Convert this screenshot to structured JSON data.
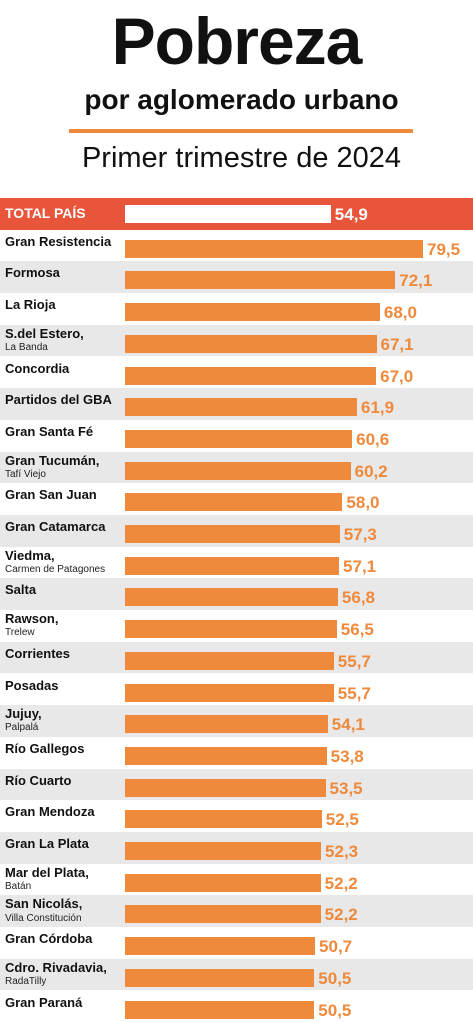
{
  "header": {
    "title": "Pobreza",
    "subtitle": "por aglomerado urbano",
    "period": "Primer trimestre de 2024"
  },
  "colors": {
    "bar": "#ef8a3c",
    "total_row": "#e8553a",
    "alt_row": "#e8e8e8"
  },
  "chart_data": {
    "type": "bar",
    "orientation": "horizontal",
    "title": "Pobreza",
    "subtitle": "por aglomerado urbano — Primer trimestre de 2024",
    "xlim": [
      0,
      79.5
    ],
    "rows": [
      {
        "name": "TOTAL PAÍS",
        "sub": "",
        "label": "54,9",
        "value": 54.9,
        "total": true
      },
      {
        "name": "Gran Resistencia",
        "sub": "",
        "label": "79,5",
        "value": 79.5
      },
      {
        "name": "Formosa",
        "sub": "",
        "label": "72,1",
        "value": 72.1
      },
      {
        "name": "La Rioja",
        "sub": "",
        "label": "68,0",
        "value": 68.0
      },
      {
        "name": "S.del Estero,",
        "sub": "La Banda",
        "label": "67,1",
        "value": 67.1
      },
      {
        "name": "Concordia",
        "sub": "",
        "label": "67,0",
        "value": 67.0
      },
      {
        "name": "Partidos del GBA",
        "sub": "",
        "label": "61,9",
        "value": 61.9
      },
      {
        "name": "Gran Santa Fé",
        "sub": "",
        "label": "60,6",
        "value": 60.6
      },
      {
        "name": "Gran Tucumán,",
        "sub": "Tafí Viejo",
        "label": "60,2",
        "value": 60.2
      },
      {
        "name": "Gran San Juan",
        "sub": "",
        "label": "58,0",
        "value": 58.0
      },
      {
        "name": "Gran Catamarca",
        "sub": "",
        "label": "57,3",
        "value": 57.3
      },
      {
        "name": "Viedma,",
        "sub": "Carmen de Patagones",
        "label": "57,1",
        "value": 57.1
      },
      {
        "name": "Salta",
        "sub": "",
        "label": "56,8",
        "value": 56.8
      },
      {
        "name": "Rawson,",
        "sub": "Trelew",
        "label": "56,5",
        "value": 56.5
      },
      {
        "name": "Corrientes",
        "sub": "",
        "label": "55,7",
        "value": 55.7
      },
      {
        "name": "Posadas",
        "sub": "",
        "label": "55,7",
        "value": 55.7
      },
      {
        "name": "Jujuy,",
        "sub": "Palpalá",
        "label": "54,1",
        "value": 54.1
      },
      {
        "name": "Río Gallegos",
        "sub": "",
        "label": "53,8",
        "value": 53.8
      },
      {
        "name": "Río Cuarto",
        "sub": "",
        "label": "53,5",
        "value": 53.5
      },
      {
        "name": "Gran Mendoza",
        "sub": "",
        "label": "52,5",
        "value": 52.5
      },
      {
        "name": "Gran La Plata",
        "sub": "",
        "label": "52,3",
        "value": 52.3
      },
      {
        "name": "Mar del Plata,",
        "sub": "Batán",
        "label": "52,2",
        "value": 52.2
      },
      {
        "name": "San Nicolás,",
        "sub": "Villa Constitución",
        "label": "52,2",
        "value": 52.2
      },
      {
        "name": "Gran Córdoba",
        "sub": "",
        "label": "50,7",
        "value": 50.7
      },
      {
        "name": "Cdro. Rivadavia,",
        "sub": "RadaTilly",
        "label": "50,5",
        "value": 50.5
      },
      {
        "name": "Gran Paraná",
        "sub": "",
        "label": "50,5",
        "value": 50.5
      }
    ]
  }
}
